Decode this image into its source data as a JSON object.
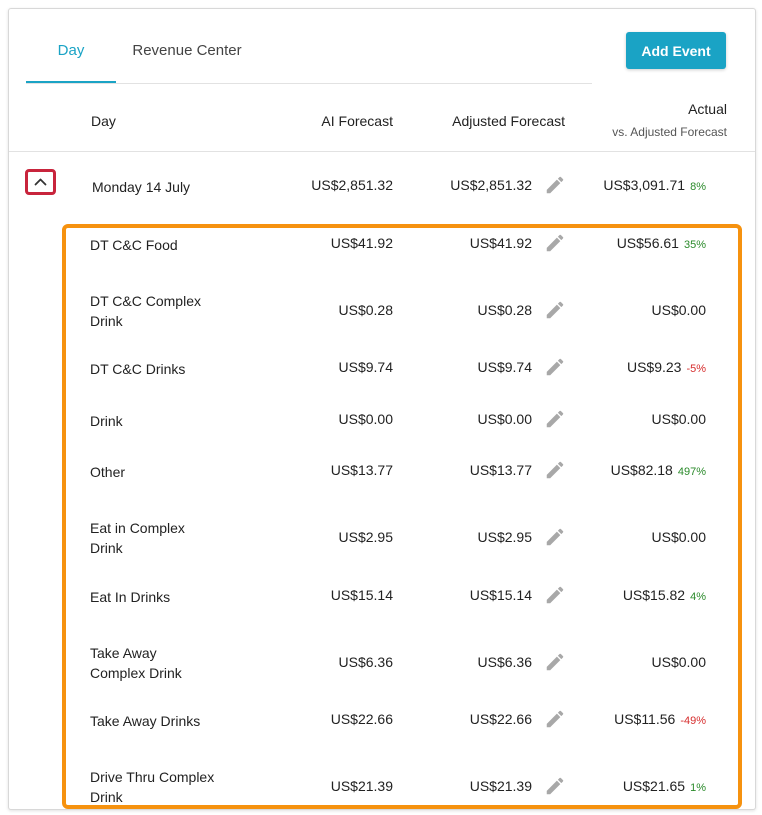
{
  "tabs": [
    {
      "label": "Day",
      "active": true
    },
    {
      "label": "Revenue Center",
      "active": false
    }
  ],
  "add_event_label": "Add Event",
  "columns": {
    "day": "Day",
    "ai_forecast": "AI Forecast",
    "adjusted_forecast": "Adjusted Forecast",
    "actual": "Actual",
    "actual_sub": "vs. Adjusted Forecast"
  },
  "icons": {
    "collapse": "chevron-up-icon",
    "edit": "pencil-icon"
  },
  "colors": {
    "accent": "#1aa3c5",
    "positive": "#2a8a2a",
    "negative": "#d62d2d",
    "highlight_red": "#c8243c",
    "highlight_orange": "#f6920f"
  },
  "day_row": {
    "name": "Monday 14 July",
    "ai": "US$2,851.32",
    "adjusted": "US$2,851.32",
    "actual": "US$3,091.71",
    "pct": "8%",
    "pct_sign": "pos"
  },
  "rows": [
    {
      "name": "DT C&C Food",
      "ai": "US$41.92",
      "adjusted": "US$41.92",
      "actual": "US$56.61",
      "pct": "35%",
      "pct_sign": "pos"
    },
    {
      "name": "DT C&C Complex Drink",
      "ai": "US$0.28",
      "adjusted": "US$0.28",
      "actual": "US$0.00",
      "pct": "",
      "pct_sign": ""
    },
    {
      "name": "DT C&C Drinks",
      "ai": "US$9.74",
      "adjusted": "US$9.74",
      "actual": "US$9.23",
      "pct": "-5%",
      "pct_sign": "neg"
    },
    {
      "name": "Drink",
      "ai": "US$0.00",
      "adjusted": "US$0.00",
      "actual": "US$0.00",
      "pct": "",
      "pct_sign": ""
    },
    {
      "name": "Other",
      "ai": "US$13.77",
      "adjusted": "US$13.77",
      "actual": "US$82.18",
      "pct": "497%",
      "pct_sign": "pos"
    },
    {
      "name": "Eat in Complex Drink",
      "ai": "US$2.95",
      "adjusted": "US$2.95",
      "actual": "US$0.00",
      "pct": "",
      "pct_sign": ""
    },
    {
      "name": "Eat In Drinks",
      "ai": "US$15.14",
      "adjusted": "US$15.14",
      "actual": "US$15.82",
      "pct": "4%",
      "pct_sign": "pos"
    },
    {
      "name": "Take Away Complex Drink",
      "ai": "US$6.36",
      "adjusted": "US$6.36",
      "actual": "US$0.00",
      "pct": "",
      "pct_sign": ""
    },
    {
      "name": "Take Away Drinks",
      "ai": "US$22.66",
      "adjusted": "US$22.66",
      "actual": "US$11.56",
      "pct": "-49%",
      "pct_sign": "neg"
    },
    {
      "name": "Drive Thru Complex Drink",
      "ai": "US$21.39",
      "adjusted": "US$21.39",
      "actual": "US$21.65",
      "pct": "1%",
      "pct_sign": "pos"
    }
  ]
}
